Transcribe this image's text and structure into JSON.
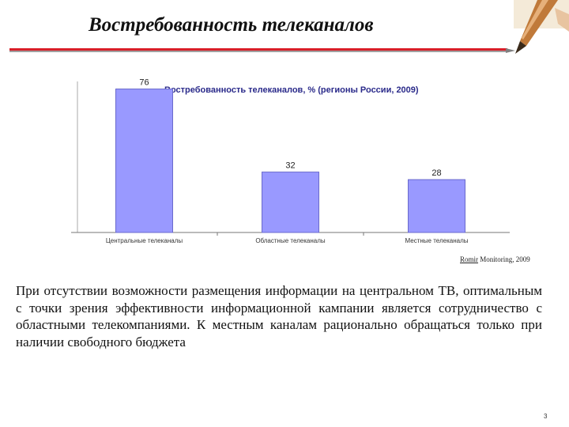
{
  "slide": {
    "title": "Востребованность телеканалов",
    "source_prefix": "Romir",
    "source_rest": " Monitoring, 2009",
    "body": "При отсутствии возможности размещения информации на центральном ТВ, оптимальным с точки зрения эффективности информационной кампании является сотрудничество с областными телекомпаниями.  К местным каналам рационально обращаться только при наличии свободного бюджета",
    "page_number": "3"
  },
  "colors": {
    "bar_fill": "#9999ff",
    "bar_stroke": "#6a6acc",
    "chart_title": "#2a2a8a",
    "rule_red": "#d81e28"
  },
  "chart_data": {
    "type": "bar",
    "title": "Востребованность телеканалов, % (регионы России, 2009)",
    "categories": [
      "Центральные телеканалы",
      "Областные телеканалы",
      "Местные телеканалы"
    ],
    "values": [
      76,
      32,
      28
    ],
    "data_labels": [
      "76",
      "32",
      "28"
    ],
    "ylim": [
      0,
      80
    ],
    "xlabel": "",
    "ylabel": "",
    "grid": false,
    "legend": "none"
  }
}
